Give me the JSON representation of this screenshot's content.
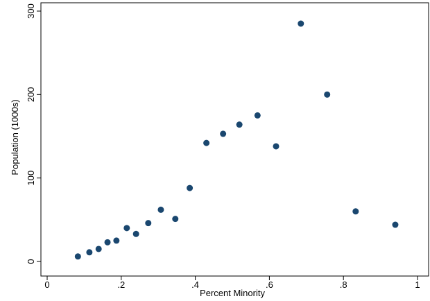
{
  "chart_data": {
    "type": "scatter",
    "xlabel": "Percent Minority",
    "ylabel": "Population (1000s)",
    "xlim": [
      0,
      1
    ],
    "ylim": [
      0,
      300
    ],
    "xticks": [
      {
        "value": 0,
        "label": "0"
      },
      {
        "value": 0.2,
        "label": ".2"
      },
      {
        "value": 0.4,
        "label": ".4"
      },
      {
        "value": 0.6,
        "label": ".6"
      },
      {
        "value": 0.8,
        "label": ".8"
      },
      {
        "value": 1,
        "label": "1"
      }
    ],
    "yticks": [
      {
        "value": 0,
        "label": "0"
      },
      {
        "value": 100,
        "label": "100"
      },
      {
        "value": 200,
        "label": "200"
      },
      {
        "value": 300,
        "label": "300"
      }
    ],
    "grid": false,
    "legend": "none",
    "marker_color": "#1a476f",
    "x": [
      0.083,
      0.114,
      0.139,
      0.163,
      0.187,
      0.215,
      0.24,
      0.273,
      0.307,
      0.346,
      0.385,
      0.43,
      0.475,
      0.519,
      0.568,
      0.618,
      0.685,
      0.756,
      0.833,
      0.94
    ],
    "y": [
      6,
      11,
      15,
      23,
      25,
      40,
      33,
      46,
      62,
      51,
      88,
      142,
      153,
      164,
      175,
      138,
      285,
      200,
      60,
      44
    ]
  }
}
